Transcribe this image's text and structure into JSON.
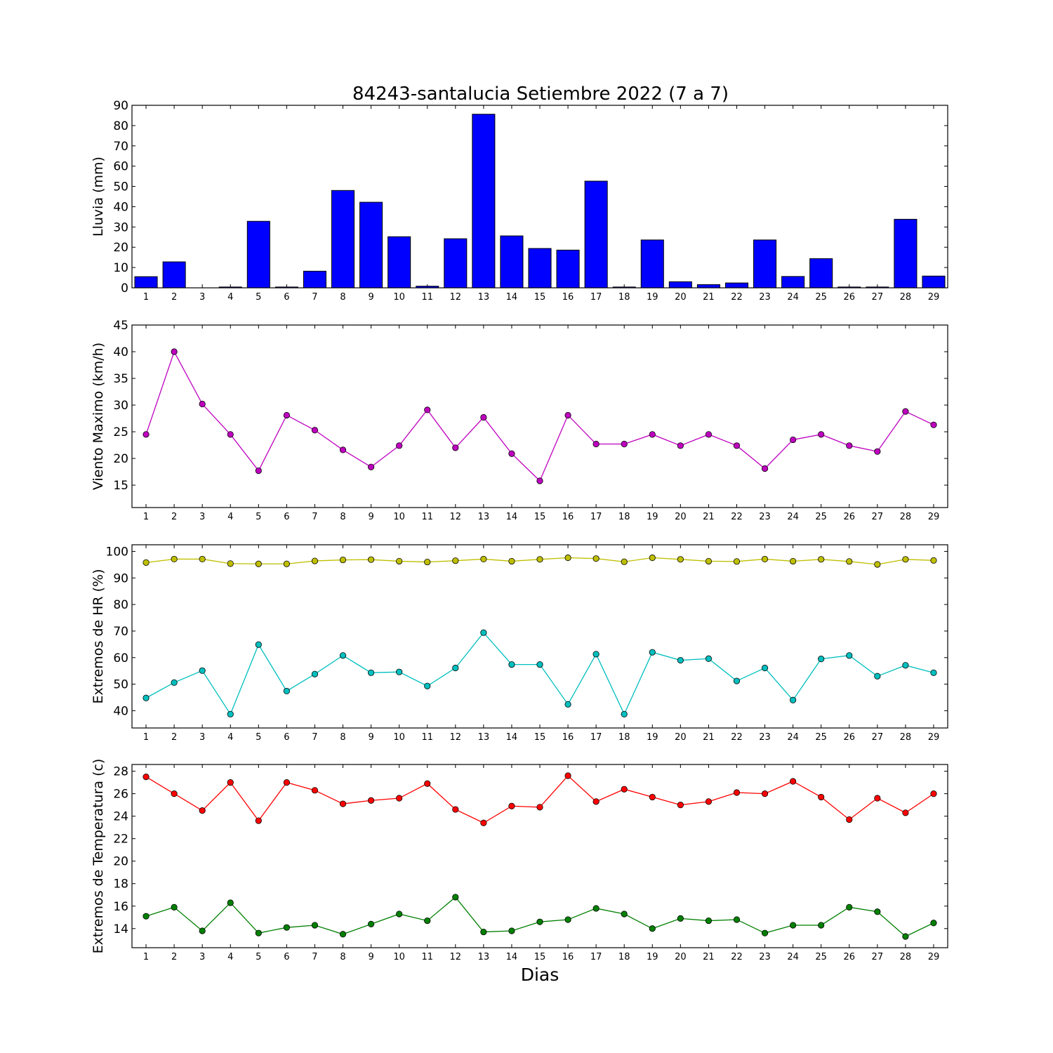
{
  "title": "84243-santalucia Setiembre 2022  (7 a 7)",
  "xlabel": "Dias",
  "chart_data": [
    {
      "type": "bar",
      "ylabel": "Lluvia (mm)",
      "ylim": [
        0,
        90
      ],
      "yticks": [
        0,
        10,
        20,
        30,
        40,
        50,
        60,
        70,
        80,
        90
      ],
      "categories": [
        1,
        2,
        3,
        4,
        5,
        6,
        7,
        8,
        9,
        10,
        11,
        12,
        13,
        14,
        15,
        16,
        17,
        18,
        19,
        20,
        21,
        22,
        23,
        24,
        25,
        26,
        27,
        28,
        29
      ],
      "series": [
        {
          "color": "#0000ff",
          "values": [
            5.5,
            12.8,
            0,
            0.4,
            32.8,
            0.4,
            8.2,
            48,
            42.2,
            25.2,
            0.8,
            24.2,
            85.6,
            25.6,
            19.4,
            18.6,
            52.6,
            0.4,
            23.6,
            3,
            1.6,
            2.4,
            23.6,
            5.6,
            14.4,
            0.4,
            0.4,
            33.8,
            5.8
          ]
        }
      ]
    },
    {
      "type": "line",
      "ylabel": "Viento Maximo (km/h)",
      "ylim": [
        10.8,
        45
      ],
      "yticks": [
        15,
        20,
        25,
        30,
        35,
        40,
        45
      ],
      "categories": [
        1,
        2,
        3,
        4,
        5,
        6,
        7,
        8,
        9,
        10,
        11,
        12,
        13,
        14,
        15,
        16,
        17,
        18,
        19,
        20,
        21,
        22,
        23,
        24,
        25,
        26,
        27,
        28,
        29
      ],
      "series": [
        {
          "color": "#bf00bf",
          "values": [
            24.5,
            40,
            30.2,
            24.5,
            17.7,
            28.1,
            25.3,
            21.6,
            18.4,
            22.4,
            29.1,
            22,
            27.7,
            20.9,
            15.8,
            28.1,
            22.7,
            22.7,
            24.5,
            22.4,
            24.5,
            22.4,
            18.1,
            23.5,
            24.5,
            22.4,
            21.3,
            28.8,
            26.3
          ]
        }
      ]
    },
    {
      "type": "line",
      "ylabel": "Extremos de HR (%)",
      "ylim": [
        33.5,
        102.5
      ],
      "yticks": [
        40,
        50,
        60,
        70,
        80,
        90,
        100
      ],
      "categories": [
        1,
        2,
        3,
        4,
        5,
        6,
        7,
        8,
        9,
        10,
        11,
        12,
        13,
        14,
        15,
        16,
        17,
        18,
        19,
        20,
        21,
        22,
        23,
        24,
        25,
        26,
        27,
        28,
        29
      ],
      "series": [
        {
          "color": "#bfbf00",
          "values": [
            95.8,
            97.1,
            97.1,
            95.4,
            95.3,
            95.3,
            96.4,
            96.8,
            96.9,
            96.3,
            96,
            96.5,
            97.1,
            96.3,
            97,
            97.6,
            97.3,
            96.1,
            97.6,
            97,
            96.3,
            96.2,
            97.1,
            96.3,
            97,
            96.2,
            95.1,
            97,
            96.6
          ]
        },
        {
          "color": "#00bfbf",
          "values": [
            44.8,
            50.6,
            55.1,
            38.7,
            64.9,
            47.4,
            53.8,
            60.8,
            54.3,
            54.6,
            49.3,
            56.1,
            69.4,
            57.4,
            57.4,
            42.4,
            61.3,
            38.7,
            62,
            59,
            59.6,
            51.2,
            56.1,
            44,
            59.5,
            60.8,
            53,
            57.1,
            54.3
          ]
        }
      ]
    },
    {
      "type": "line",
      "ylabel": "Extremos de Temperatura (c)",
      "ylim": [
        12.3,
        28.6
      ],
      "yticks": [
        14,
        16,
        18,
        20,
        22,
        24,
        26,
        28
      ],
      "categories": [
        1,
        2,
        3,
        4,
        5,
        6,
        7,
        8,
        9,
        10,
        11,
        12,
        13,
        14,
        15,
        16,
        17,
        18,
        19,
        20,
        21,
        22,
        23,
        24,
        25,
        26,
        27,
        28,
        29
      ],
      "series": [
        {
          "color": "#ff0000",
          "values": [
            27.5,
            26,
            24.5,
            27,
            23.6,
            27,
            26.3,
            25.1,
            25.4,
            25.6,
            26.9,
            24.6,
            23.4,
            24.9,
            24.8,
            27.6,
            25.3,
            26.4,
            25.7,
            25,
            25.3,
            26.1,
            26,
            27.1,
            25.7,
            23.7,
            25.6,
            24.3,
            26
          ]
        },
        {
          "color": "#008000",
          "values": [
            15.1,
            15.9,
            13.8,
            16.3,
            13.6,
            14.1,
            14.3,
            13.5,
            14.4,
            15.3,
            14.7,
            16.8,
            13.7,
            13.8,
            14.6,
            14.8,
            15.8,
            15.3,
            14,
            14.9,
            14.7,
            14.8,
            13.6,
            14.3,
            14.3,
            15.9,
            15.5,
            13.3,
            14.5
          ]
        }
      ]
    }
  ]
}
